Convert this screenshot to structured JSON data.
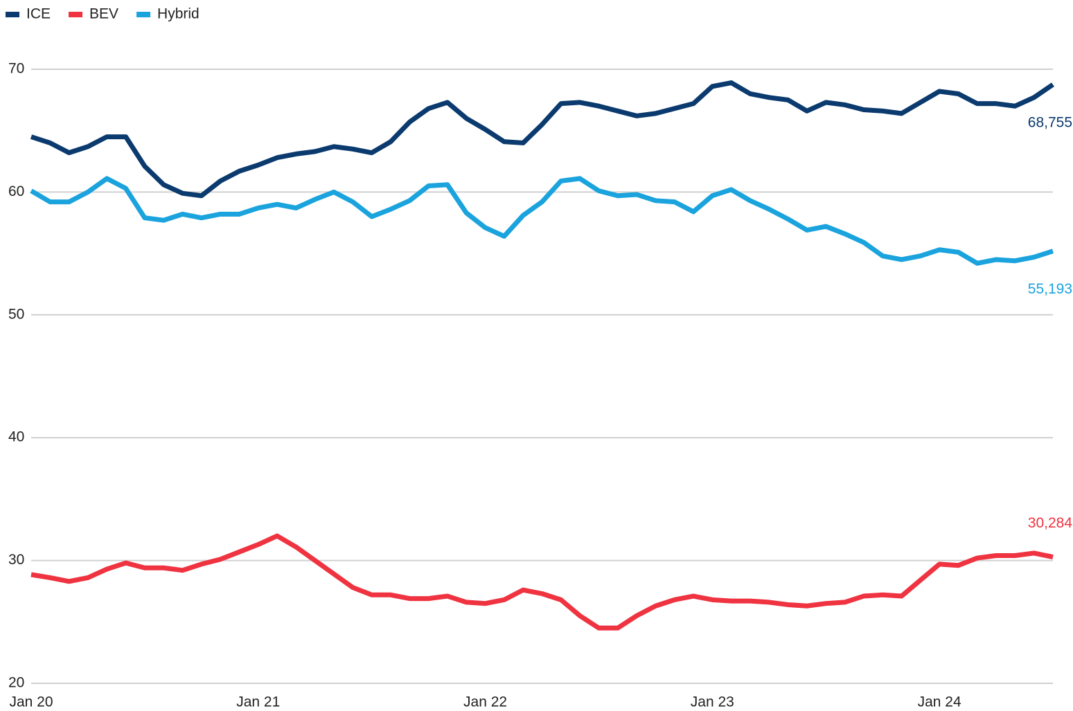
{
  "chart_data": {
    "type": "line",
    "x": [
      "2020-01",
      "2020-02",
      "2020-03",
      "2020-04",
      "2020-05",
      "2020-06",
      "2020-07",
      "2020-08",
      "2020-09",
      "2020-10",
      "2020-11",
      "2020-12",
      "2021-01",
      "2021-02",
      "2021-03",
      "2021-04",
      "2021-05",
      "2021-06",
      "2021-07",
      "2021-08",
      "2021-09",
      "2021-10",
      "2021-11",
      "2021-12",
      "2022-01",
      "2022-02",
      "2022-03",
      "2022-04",
      "2022-05",
      "2022-06",
      "2022-07",
      "2022-08",
      "2022-09",
      "2022-10",
      "2022-11",
      "2022-12",
      "2023-01",
      "2023-02",
      "2023-03",
      "2023-04",
      "2023-05",
      "2023-06",
      "2023-07",
      "2023-08",
      "2023-09",
      "2023-10",
      "2023-11",
      "2023-12",
      "2024-01",
      "2024-02",
      "2024-03",
      "2024-04",
      "2024-05",
      "2024-06",
      "2024-07"
    ],
    "xticks": [
      {
        "value": "2020-01",
        "label": "Jan 20"
      },
      {
        "value": "2021-01",
        "label": "Jan 21"
      },
      {
        "value": "2022-01",
        "label": "Jan 22"
      },
      {
        "value": "2023-01",
        "label": "Jan 23"
      },
      {
        "value": "2024-01",
        "label": "Jan 24"
      }
    ],
    "ylim": [
      20,
      70
    ],
    "yticks": [
      20,
      30,
      40,
      50,
      60,
      70
    ],
    "grid": true,
    "legend": "top-left",
    "series": [
      {
        "name": "ICE",
        "color": "#0b3a6e",
        "values": [
          64.5,
          64.0,
          63.2,
          63.7,
          64.5,
          64.5,
          62.1,
          60.6,
          59.9,
          59.7,
          60.9,
          61.7,
          62.2,
          62.8,
          63.1,
          63.3,
          63.7,
          63.5,
          63.2,
          64.1,
          65.7,
          66.8,
          67.3,
          66.0,
          65.1,
          64.1,
          64.0,
          65.5,
          67.2,
          67.3,
          67.0,
          66.6,
          66.2,
          66.4,
          66.8,
          67.2,
          68.6,
          68.9,
          68.0,
          67.7,
          67.5,
          66.6,
          67.3,
          67.1,
          66.7,
          66.6,
          66.4,
          67.3,
          68.2,
          68.0,
          67.2,
          67.2,
          67.0,
          67.7,
          68.755
        ],
        "value_labels": [
          null,
          null,
          null,
          null,
          null,
          null,
          null,
          null,
          null,
          null,
          null,
          null,
          null,
          null,
          null,
          null,
          null,
          null,
          null,
          null,
          null,
          null,
          null,
          null,
          null,
          null,
          null,
          null,
          null,
          null,
          null,
          null,
          null,
          null,
          null,
          null,
          null,
          null,
          null,
          null,
          null,
          null,
          null,
          null,
          null,
          null,
          null,
          null,
          null,
          null,
          null,
          null,
          null,
          null,
          "68,755"
        ]
      },
      {
        "name": "BEV",
        "color": "#ef3340",
        "values": [
          28.85,
          28.6,
          28.3,
          28.6,
          29.3,
          29.8,
          29.4,
          29.4,
          29.2,
          29.7,
          30.1,
          30.7,
          31.3,
          32.0,
          31.1,
          30.0,
          28.9,
          27.8,
          27.2,
          27.2,
          26.9,
          26.9,
          27.1,
          26.6,
          26.5,
          26.8,
          27.6,
          27.3,
          26.8,
          25.5,
          24.5,
          24.5,
          25.5,
          26.3,
          26.8,
          27.1,
          26.8,
          26.7,
          26.7,
          26.6,
          26.4,
          26.3,
          26.5,
          26.6,
          27.1,
          27.2,
          27.1,
          28.4,
          29.7,
          29.6,
          30.2,
          30.4,
          30.4,
          30.6,
          30.284
        ],
        "value_labels": [
          null,
          null,
          null,
          null,
          null,
          null,
          null,
          null,
          null,
          null,
          null,
          null,
          null,
          null,
          null,
          null,
          null,
          null,
          null,
          null,
          null,
          null,
          null,
          null,
          null,
          null,
          null,
          null,
          null,
          null,
          null,
          null,
          null,
          null,
          null,
          null,
          null,
          null,
          null,
          null,
          null,
          null,
          null,
          null,
          null,
          null,
          null,
          null,
          null,
          null,
          null,
          null,
          null,
          null,
          "30,284"
        ]
      },
      {
        "name": "Hybrid",
        "color": "#1aa3dd",
        "values": [
          60.1,
          59.2,
          59.2,
          60.0,
          61.1,
          60.3,
          57.9,
          57.7,
          58.2,
          57.9,
          58.2,
          58.2,
          58.7,
          59.0,
          58.7,
          59.4,
          60.0,
          59.2,
          58.0,
          58.6,
          59.3,
          60.5,
          60.6,
          58.3,
          57.1,
          56.4,
          58.1,
          59.2,
          60.9,
          61.1,
          60.1,
          59.7,
          59.8,
          59.3,
          59.2,
          58.4,
          59.7,
          60.2,
          59.3,
          58.6,
          57.8,
          56.9,
          57.2,
          56.6,
          55.9,
          54.8,
          54.5,
          54.8,
          55.3,
          55.1,
          54.2,
          54.5,
          54.4,
          54.7,
          55.193
        ],
        "value_labels": [
          null,
          null,
          null,
          null,
          null,
          null,
          null,
          null,
          null,
          null,
          null,
          null,
          null,
          null,
          null,
          null,
          null,
          null,
          null,
          null,
          null,
          null,
          null,
          null,
          null,
          null,
          null,
          null,
          null,
          null,
          null,
          null,
          null,
          null,
          null,
          null,
          null,
          null,
          null,
          null,
          null,
          null,
          null,
          null,
          null,
          null,
          null,
          null,
          null,
          null,
          null,
          null,
          null,
          null,
          "55,193"
        ]
      }
    ]
  }
}
